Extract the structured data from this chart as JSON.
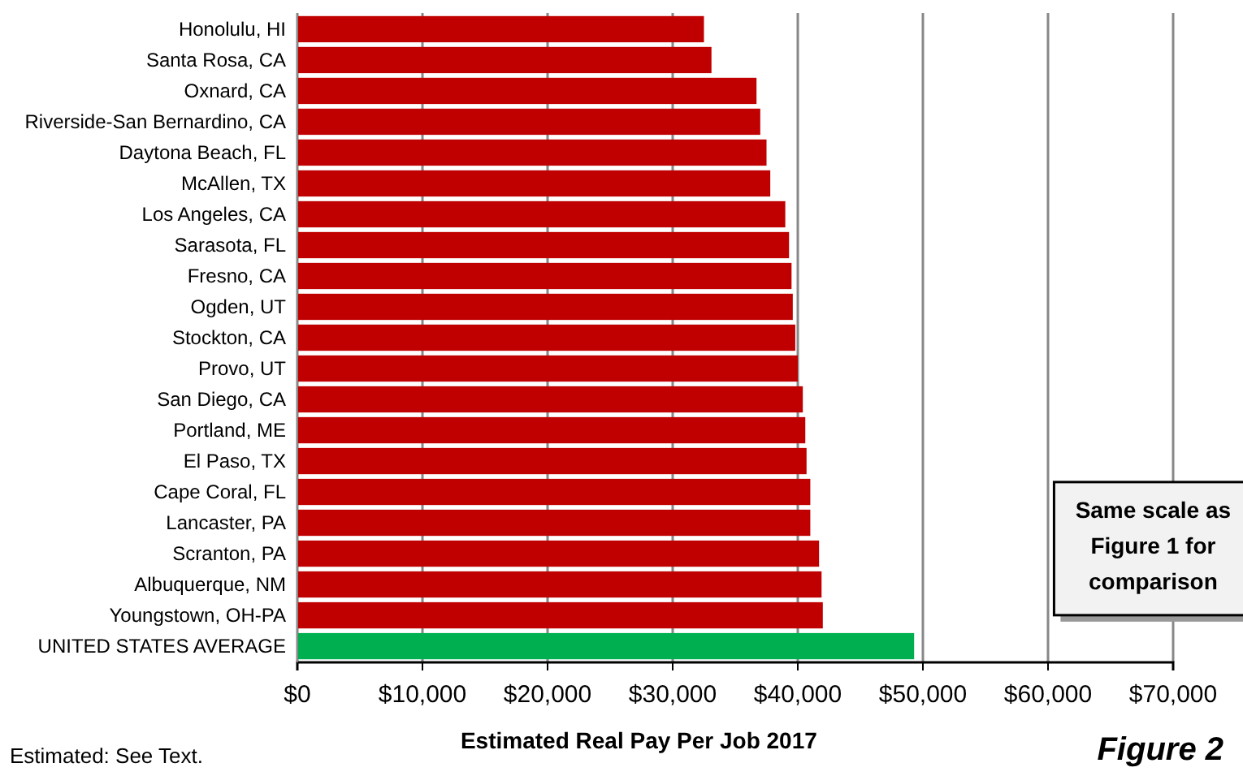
{
  "chart_data": {
    "type": "bar",
    "orientation": "horizontal",
    "xlabel": "Estimated Real Pay Per Job 2017",
    "categories": [
      "Honolulu, HI",
      "Santa Rosa, CA",
      "Oxnard, CA",
      "Riverside-San Bernardino, CA",
      "Daytona Beach, FL",
      "McAllen, TX",
      "Los Angeles, CA",
      "Sarasota, FL",
      "Fresno, CA",
      "Ogden, UT",
      "Stockton, CA",
      "Provo, UT",
      "San Diego, CA",
      "Portland, ME",
      "El Paso, TX",
      "Cape Coral, FL",
      "Lancaster, PA",
      "Scranton, PA",
      "Albuquerque, NM",
      "Youngstown, OH-PA",
      "UNITED STATES AVERAGE"
    ],
    "values": [
      32500,
      33100,
      36700,
      37000,
      37500,
      37800,
      39000,
      39300,
      39500,
      39600,
      39800,
      40000,
      40400,
      40600,
      40700,
      41000,
      41000,
      41700,
      41900,
      42000,
      49300
    ],
    "colors": [
      "#c00000",
      "#c00000",
      "#c00000",
      "#c00000",
      "#c00000",
      "#c00000",
      "#c00000",
      "#c00000",
      "#c00000",
      "#c00000",
      "#c00000",
      "#c00000",
      "#c00000",
      "#c00000",
      "#c00000",
      "#c00000",
      "#c00000",
      "#c00000",
      "#c00000",
      "#c00000",
      "#00b050"
    ],
    "xlim": [
      0,
      70000
    ],
    "xticks": [
      {
        "value": 0,
        "label": "$0"
      },
      {
        "value": 10000,
        "label": "$10,000"
      },
      {
        "value": 20000,
        "label": "$20,000"
      },
      {
        "value": 30000,
        "label": "$30,000"
      },
      {
        "value": 40000,
        "label": "$40,000"
      },
      {
        "value": 50000,
        "label": "$50,000"
      },
      {
        "value": 60000,
        "label": "$60,000"
      },
      {
        "value": 70000,
        "label": "$70,000"
      }
    ],
    "grid": "x",
    "annotations": [
      "Same scale as Figure 1 for comparison",
      "Estimated: See Text.",
      "Figure 2"
    ]
  }
}
